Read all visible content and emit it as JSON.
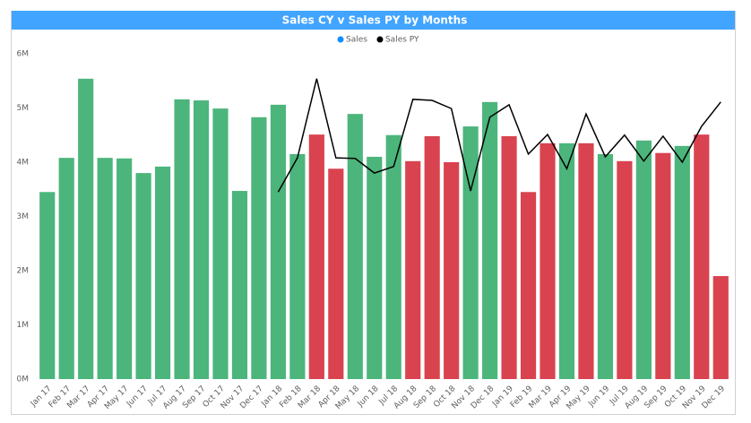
{
  "chart_data": {
    "type": "combo",
    "title": "Sales CY v Sales PY by Months",
    "categories": [
      "Jan 17",
      "Feb 17",
      "Mar 17",
      "Apr 17",
      "May 17",
      "Jun 17",
      "Jul 17",
      "Aug 17",
      "Sep 17",
      "Oct 17",
      "Nov 17",
      "Dec 17",
      "Jan 18",
      "Feb 18",
      "Mar 18",
      "Apr 18",
      "May 18",
      "Jun 18",
      "Jul 18",
      "Aug 18",
      "Sep 18",
      "Oct 18",
      "Nov 18",
      "Dec 18",
      "Jan 19",
      "Feb 19",
      "Mar 19",
      "Apr 19",
      "May 19",
      "Jun 19",
      "Jul 19",
      "Aug 19",
      "Sep 19",
      "Oct 19",
      "Nov 19",
      "Dec 19"
    ],
    "series": [
      {
        "name": "Sales",
        "type": "bar",
        "color": "#118dff",
        "values": [
          3.45,
          4.08,
          5.54,
          4.08,
          4.07,
          3.8,
          3.92,
          5.16,
          5.14,
          4.99,
          3.47,
          4.83,
          5.06,
          4.15,
          4.51,
          3.88,
          4.89,
          4.1,
          4.5,
          4.02,
          4.48,
          4.0,
          4.66,
          5.11,
          4.48,
          3.45,
          4.35,
          4.35,
          4.35,
          4.15,
          4.02,
          4.4,
          4.17,
          4.3,
          4.51,
          1.9
        ],
        "colors": [
          "#4cb57c",
          "#4cb57c",
          "#4cb57c",
          "#4cb57c",
          "#4cb57c",
          "#4cb57c",
          "#4cb57c",
          "#4cb57c",
          "#4cb57c",
          "#4cb57c",
          "#4cb57c",
          "#4cb57c",
          "#4cb57c",
          "#4cb57c",
          "#d9434f",
          "#d9434f",
          "#4cb57c",
          "#4cb57c",
          "#4cb57c",
          "#d9434f",
          "#d9434f",
          "#d9434f",
          "#4cb57c",
          "#4cb57c",
          "#d9434f",
          "#d9434f",
          "#d9434f",
          "#4cb57c",
          "#d9434f",
          "#4cb57c",
          "#d9434f",
          "#4cb57c",
          "#d9434f",
          "#4cb57c",
          "#d9434f",
          "#d9434f"
        ]
      },
      {
        "name": "Sales PY",
        "type": "line",
        "color": "#000000",
        "values": [
          null,
          null,
          null,
          null,
          null,
          null,
          null,
          null,
          null,
          null,
          null,
          null,
          3.45,
          4.08,
          5.54,
          4.08,
          4.07,
          3.8,
          3.92,
          5.16,
          5.14,
          4.99,
          3.47,
          4.83,
          5.06,
          4.15,
          4.51,
          3.88,
          4.89,
          4.1,
          4.5,
          4.02,
          4.48,
          4.0,
          4.66,
          5.11
        ]
      }
    ],
    "ylim": [
      0,
      6
    ],
    "yticks": [
      {
        "value": 0,
        "label": "0M"
      },
      {
        "value": 1,
        "label": "1M"
      },
      {
        "value": 2,
        "label": "2M"
      },
      {
        "value": 3,
        "label": "3M"
      },
      {
        "value": 4,
        "label": "4M"
      },
      {
        "value": 5,
        "label": "5M"
      },
      {
        "value": 6,
        "label": "6M"
      }
    ],
    "grid": false,
    "legend": "top"
  }
}
